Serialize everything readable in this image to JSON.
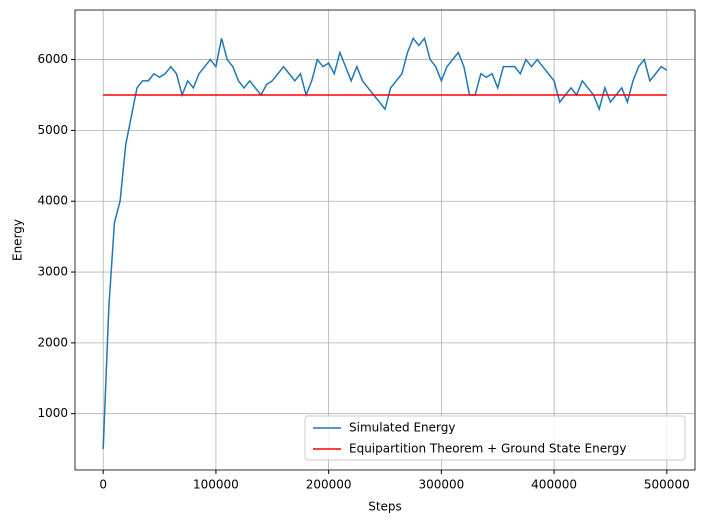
{
  "chart_data": {
    "type": "line",
    "xlabel": "Steps",
    "ylabel": "Energy",
    "xlim": [
      -25000,
      525000
    ],
    "ylim": [
      205,
      6700
    ],
    "xticks": [
      0,
      100000,
      200000,
      300000,
      400000,
      500000
    ],
    "yticks": [
      1000,
      2000,
      3000,
      4000,
      5000,
      6000
    ],
    "grid": true,
    "legend": "lower right",
    "series": [
      {
        "name": "Simulated Energy",
        "color": "#1f77b4",
        "x": [
          0,
          5000,
          10000,
          15000,
          20000,
          25000,
          30000,
          35000,
          40000,
          45000,
          50000,
          55000,
          60000,
          65000,
          70000,
          75000,
          80000,
          85000,
          90000,
          95000,
          100000,
          105000,
          110000,
          115000,
          120000,
          125000,
          130000,
          135000,
          140000,
          145000,
          150000,
          155000,
          160000,
          165000,
          170000,
          175000,
          180000,
          185000,
          190000,
          195000,
          200000,
          205000,
          210000,
          215000,
          220000,
          225000,
          230000,
          235000,
          240000,
          245000,
          250000,
          255000,
          260000,
          265000,
          270000,
          275000,
          280000,
          285000,
          290000,
          295000,
          300000,
          305000,
          310000,
          315000,
          320000,
          325000,
          330000,
          335000,
          340000,
          345000,
          350000,
          355000,
          360000,
          365000,
          370000,
          375000,
          380000,
          385000,
          390000,
          395000,
          400000,
          405000,
          410000,
          415000,
          420000,
          425000,
          430000,
          435000,
          440000,
          445000,
          450000,
          455000,
          460000,
          465000,
          470000,
          475000,
          480000,
          485000,
          490000,
          495000,
          500000
        ],
        "values": [
          500,
          2500,
          3700,
          4000,
          4800,
          5200,
          5600,
          5700,
          5700,
          5800,
          5750,
          5800,
          5900,
          5800,
          5500,
          5700,
          5600,
          5800,
          5900,
          6000,
          5900,
          6300,
          6000,
          5900,
          5700,
          5600,
          5700,
          5600,
          5500,
          5650,
          5700,
          5800,
          5900,
          5800,
          5700,
          5800,
          5500,
          5700,
          6000,
          5900,
          5950,
          5800,
          6100,
          5900,
          5700,
          5900,
          5700,
          5600,
          5500,
          5400,
          5300,
          5600,
          5700,
          5800,
          6100,
          6300,
          6200,
          6300,
          6000,
          5900,
          5700,
          5900,
          6000,
          6100,
          5900,
          5500,
          5500,
          5800,
          5750,
          5800,
          5600,
          5900,
          5900,
          5900,
          5800,
          6000,
          5900,
          6000,
          5900,
          5800,
          5700,
          5400,
          5500,
          5600,
          5500,
          5700,
          5600,
          5500,
          5300,
          5600,
          5400,
          5500,
          5600,
          5400,
          5700,
          5900,
          6000,
          5700,
          5800,
          5900,
          5850
        ]
      },
      {
        "name": "Equipartition Theorem + Ground State Energy",
        "color": "#ff0000",
        "x": [
          0,
          500000
        ],
        "values": [
          5500,
          5500
        ]
      }
    ]
  }
}
